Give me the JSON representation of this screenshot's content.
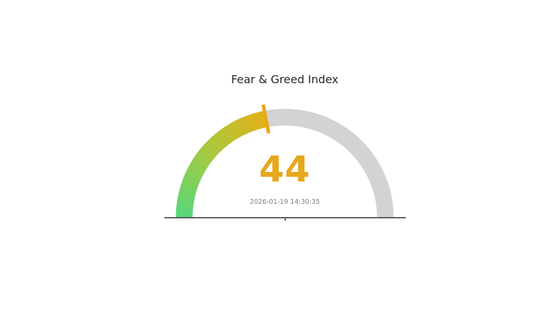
{
  "chart_data": {
    "type": "gauge",
    "title": "Fear & Greed Index",
    "value": 44,
    "min": 0,
    "max": 100,
    "timestamp": "2026-01-19 14:30:35",
    "layout": {
      "arc_span_degrees": 180,
      "legend": false,
      "grid": false,
      "axis_labels": false
    },
    "colors": {
      "value_text": "#e8a71c",
      "needle": "#e9a714",
      "track": "#d3d3d3",
      "gradient_stops": [
        "#55d77b",
        "#a5ca41",
        "#e3b118"
      ],
      "baseline": "#5f5f5f",
      "title_text": "#262626",
      "timestamp_text": "#7f7f7f"
    }
  }
}
